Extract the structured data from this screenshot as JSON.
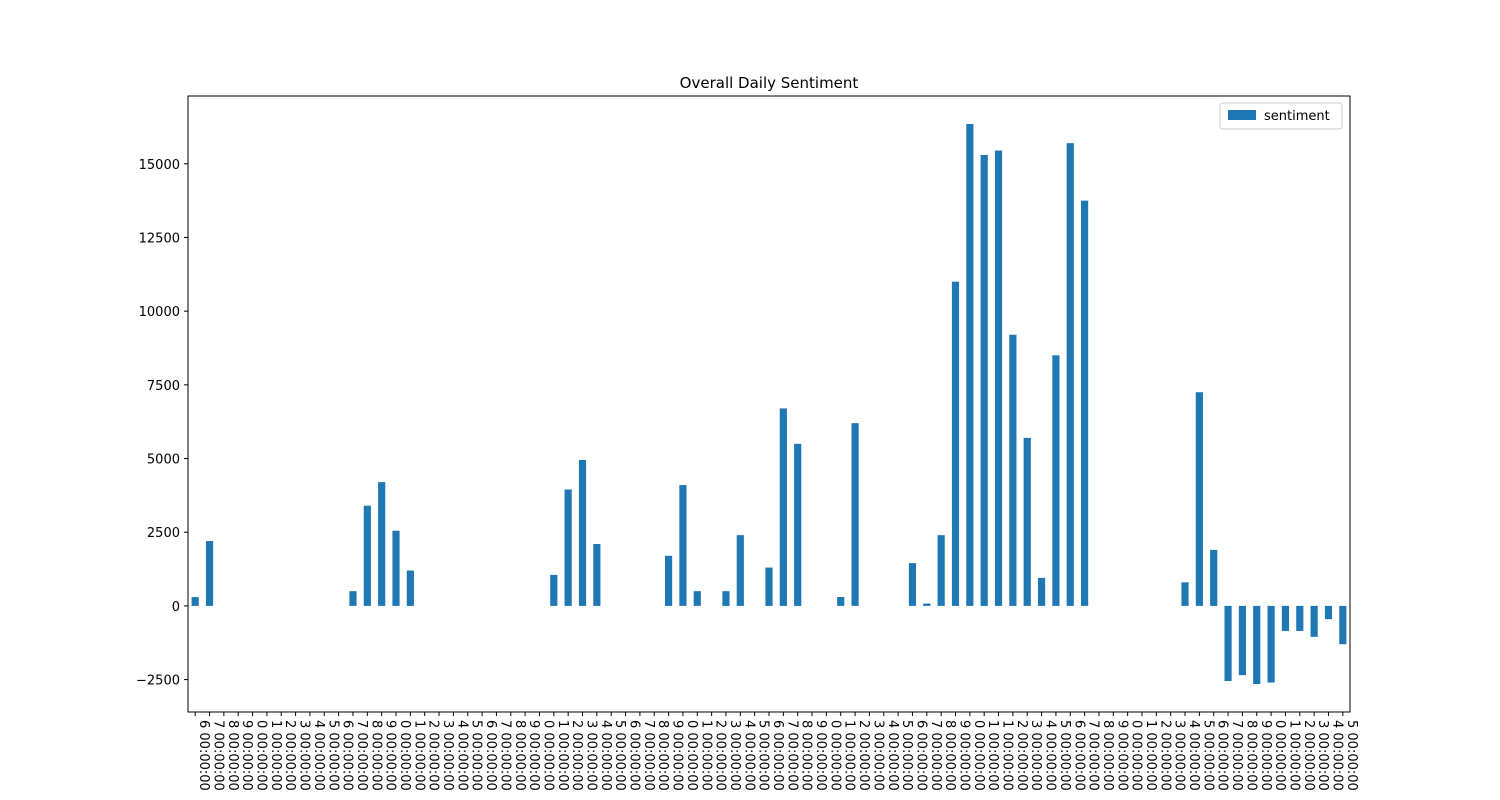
{
  "chart_data": {
    "type": "bar",
    "title": "Overall Daily Sentiment",
    "categories": [
      "6 00:00:00",
      "7 00:00:00",
      "8 00:00:00",
      "9 00:00:00",
      "0 00:00:00",
      "1 00:00:00",
      "2 00:00:00",
      "3 00:00:00",
      "4 00:00:00",
      "5 00:00:00",
      "6 00:00:00",
      "7 00:00:00",
      "8 00:00:00",
      "9 00:00:00",
      "0 00:00:00",
      "1 00:00:00",
      "2 00:00:00",
      "3 00:00:00",
      "4 00:00:00",
      "5 00:00:00",
      "6 00:00:00",
      "7 00:00:00",
      "8 00:00:00",
      "9 00:00:00",
      "0 00:00:00",
      "1 00:00:00",
      "2 00:00:00",
      "3 00:00:00",
      "4 00:00:00",
      "5 00:00:00",
      "6 00:00:00",
      "7 00:00:00",
      "8 00:00:00",
      "9 00:00:00",
      "0 00:00:00",
      "1 00:00:00",
      "2 00:00:00",
      "3 00:00:00",
      "4 00:00:00",
      "5 00:00:00",
      "6 00:00:00",
      "7 00:00:00",
      "8 00:00:00",
      "9 00:00:00",
      "0 00:00:00",
      "1 00:00:00",
      "2 00:00:00",
      "3 00:00:00",
      "4 00:00:00",
      "5 00:00:00",
      "6 00:00:00",
      "7 00:00:00",
      "8 00:00:00",
      "9 00:00:00",
      "0 00:00:00",
      "1 00:00:00",
      "1 00:00:00",
      "2 00:00:00",
      "3 00:00:00",
      "4 00:00:00",
      "5 00:00:00",
      "6 00:00:00",
      "7 00:00:00",
      "8 00:00:00",
      "9 00:00:00",
      "0 00:00:00",
      "1 00:00:00",
      "2 00:00:00",
      "3 00:00:00",
      "4 00:00:00",
      "5 00:00:00",
      "6 00:00:00",
      "7 00:00:00",
      "8 00:00:00",
      "9 00:00:00",
      "0 00:00:00",
      "1 00:00:00",
      "2 00:00:00",
      "3 00:00:00",
      "4 00:00:00",
      "5 00:00:00"
    ],
    "series": [
      {
        "name": "sentiment",
        "color": "#1f77b4",
        "values": [
          300,
          2200,
          0,
          0,
          0,
          0,
          0,
          0,
          0,
          0,
          0,
          500,
          3400,
          4200,
          2550,
          1200,
          0,
          0,
          0,
          0,
          0,
          0,
          0,
          0,
          0,
          1050,
          3950,
          4950,
          2100,
          0,
          0,
          0,
          0,
          1700,
          4100,
          500,
          0,
          500,
          2400,
          0,
          1300,
          6700,
          5500,
          0,
          0,
          300,
          6200,
          0,
          0,
          0,
          1450,
          80,
          2400,
          11000,
          16350,
          15300,
          15450,
          9200,
          5700,
          950,
          8500,
          15700,
          13750,
          0,
          0,
          0,
          0,
          0,
          0,
          800,
          7250,
          1900,
          -2550,
          -2350,
          -2650,
          -2600,
          -850,
          -850,
          -1050,
          -450,
          -1300
        ]
      }
    ],
    "ylim": [
      -3600,
      17300
    ],
    "yticks": [
      {
        "value": -2500,
        "label": "−2500"
      },
      0,
      2500,
      5000,
      7500,
      10000,
      12500,
      15000
    ],
    "legend": "upper right"
  }
}
